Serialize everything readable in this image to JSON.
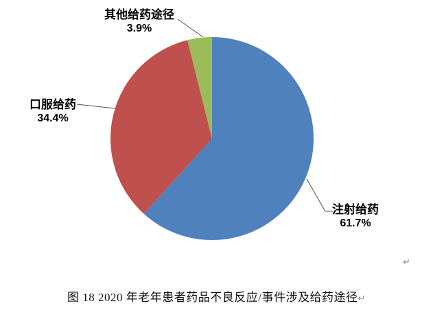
{
  "chart_data": {
    "type": "pie",
    "title": "图 18  2020 年老年患者药品不良反应/事件涉及给药途径",
    "direction": "clockwise",
    "start_angle_deg": 0,
    "legend_position": "none",
    "slices": [
      {
        "label": "注射给药",
        "value": 61.7,
        "display": "61.7%",
        "color": "#4F81BD"
      },
      {
        "label": "口服给药",
        "value": 34.4,
        "display": "34.4%",
        "color": "#C0504D"
      },
      {
        "label": "其他给药途径",
        "value": 3.9,
        "display": "3.9%",
        "color": "#9BBB59"
      }
    ]
  },
  "caption": {
    "text": "图 18  2020 年老年患者药品不良反应/事件涉及给药途径",
    "return_mark": "↵"
  },
  "artifacts": {
    "trailing_return_mark": "↵"
  },
  "colors": {
    "leader_line": "#4d4d4d",
    "label_text": "#000000",
    "background": "#ffffff"
  }
}
